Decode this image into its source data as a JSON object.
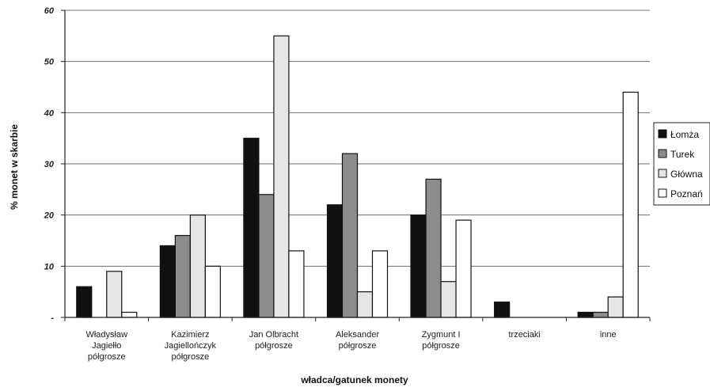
{
  "chart_data": {
    "type": "bar",
    "title": "",
    "xlabel": "władca/gatunek monety",
    "ylabel": "% monet w skarbie",
    "ylim": [
      0,
      60
    ],
    "yticks": [
      "-",
      "10",
      "20",
      "30",
      "40",
      "50",
      "60"
    ],
    "grid": true,
    "legend_position": "right",
    "categories": [
      [
        "Władysław",
        "Jagiełło",
        "półgrosze"
      ],
      [
        "Kazimierz",
        "Jagiellończyk",
        "półgrosze"
      ],
      [
        "Jan Olbracht",
        "półgrosze"
      ],
      [
        "Aleksander",
        "półgrosze"
      ],
      [
        "Zygmunt I",
        "półgrosze"
      ],
      [
        "trzeciaki"
      ],
      [
        "inne"
      ]
    ],
    "series": [
      {
        "name": "Łomża",
        "color": "#111111",
        "values": [
          6,
          14,
          35,
          22,
          20,
          3,
          1
        ]
      },
      {
        "name": "Turek",
        "color": "#8c8c8c",
        "values": [
          0,
          16,
          24,
          32,
          27,
          0,
          1
        ]
      },
      {
        "name": "Główna",
        "color": "#e6e6e6",
        "values": [
          9,
          20,
          55,
          5,
          7,
          0,
          4
        ]
      },
      {
        "name": "Poznań",
        "color": "#ffffff",
        "values": [
          1,
          10,
          13,
          13,
          19,
          0,
          44
        ]
      }
    ]
  }
}
